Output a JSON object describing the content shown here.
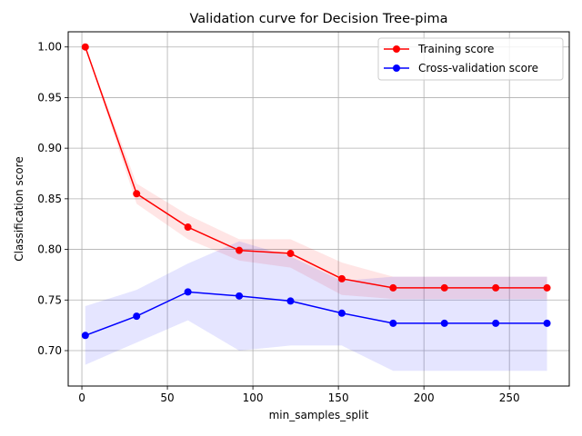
{
  "chart_data": {
    "type": "line",
    "title": "Validation curve for Decision Tree-pima",
    "xlabel": "min_samples_split",
    "ylabel": "Classification score",
    "xlim": [
      -8,
      285
    ],
    "ylim": [
      0.665,
      1.015
    ],
    "x_ticks": [
      0,
      50,
      100,
      150,
      200,
      250
    ],
    "y_ticks": [
      0.7,
      0.75,
      0.8,
      0.85,
      0.9,
      0.95,
      1.0
    ],
    "grid": true,
    "legend_position": "top-right",
    "x": [
      2,
      32,
      62,
      92,
      122,
      152,
      182,
      212,
      242,
      272
    ],
    "series": [
      {
        "name": "Training score",
        "color": "#ff0000",
        "band_color": "#ff0000",
        "values": [
          1.0,
          0.855,
          0.822,
          0.799,
          0.796,
          0.771,
          0.762,
          0.762,
          0.762,
          0.762
        ],
        "band_upper": [
          1.0,
          0.865,
          0.834,
          0.81,
          0.81,
          0.787,
          0.773,
          0.773,
          0.773,
          0.773
        ],
        "band_lower": [
          1.0,
          0.845,
          0.81,
          0.789,
          0.782,
          0.755,
          0.751,
          0.751,
          0.751,
          0.751
        ]
      },
      {
        "name": "Cross-validation score",
        "color": "#0000ff",
        "band_color": "#0000ff",
        "values": [
          0.715,
          0.734,
          0.758,
          0.754,
          0.749,
          0.737,
          0.727,
          0.727,
          0.727,
          0.727
        ],
        "band_upper": [
          0.744,
          0.76,
          0.786,
          0.808,
          0.793,
          0.769,
          0.773,
          0.773,
          0.773,
          0.773
        ],
        "band_lower": [
          0.686,
          0.708,
          0.73,
          0.7,
          0.705,
          0.705,
          0.68,
          0.68,
          0.68,
          0.68
        ]
      }
    ]
  }
}
